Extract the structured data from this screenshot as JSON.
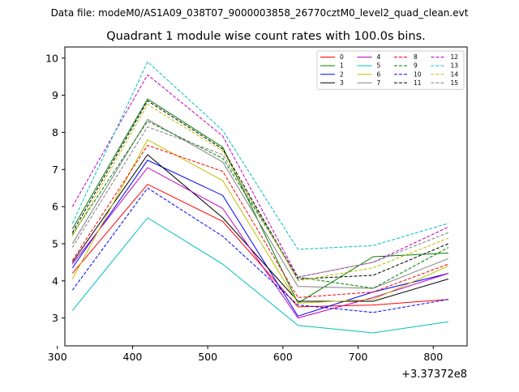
{
  "figure": {
    "suptitle": "Data file: modeM0/AS1A09_038T07_9000003858_26770cztM0_level2_quad_clean.evt",
    "title": "Quadrant 1 module wise count rates with 100.0s bins."
  },
  "chart_data": {
    "type": "line",
    "x_offset_label": "+3.37372e8",
    "xlim": [
      310,
      845
    ],
    "ylim": [
      2.25,
      10.3
    ],
    "x_ticks": [
      300,
      400,
      500,
      600,
      700,
      800
    ],
    "x_tick_labels": [
      "300",
      "400",
      "500",
      "600",
      "700",
      "800"
    ],
    "y_ticks": [
      3,
      4,
      5,
      6,
      7,
      8,
      9,
      10
    ],
    "y_tick_labels": [
      "3",
      "4",
      "5",
      "6",
      "7",
      "8",
      "9",
      "10"
    ],
    "x": [
      320,
      420,
      520,
      620,
      720,
      820
    ],
    "legend_position": "upper right",
    "legend_columns": 4,
    "grid": false,
    "series": [
      {
        "name": "0",
        "color": "#ff0000",
        "dash": "solid",
        "values": [
          4.2,
          6.6,
          5.6,
          3.3,
          3.35,
          3.5
        ]
      },
      {
        "name": "1",
        "color": "#008000",
        "dash": "solid",
        "values": [
          5.4,
          8.9,
          7.6,
          3.4,
          4.65,
          4.75
        ]
      },
      {
        "name": "2",
        "color": "#0000ff",
        "dash": "solid",
        "values": [
          4.35,
          7.25,
          6.3,
          3.05,
          3.7,
          4.2
        ]
      },
      {
        "name": "3",
        "color": "#000000",
        "dash": "solid",
        "values": [
          4.5,
          7.4,
          5.7,
          3.45,
          3.45,
          4.05
        ]
      },
      {
        "name": "4",
        "color": "#bf00bf",
        "dash": "solid",
        "values": [
          4.45,
          7.05,
          5.95,
          3.0,
          3.55,
          4.2
        ]
      },
      {
        "name": "5",
        "color": "#00bfbf",
        "dash": "solid",
        "values": [
          3.2,
          5.7,
          4.45,
          2.8,
          2.6,
          2.9
        ]
      },
      {
        "name": "6",
        "color": "#bfbf00",
        "dash": "solid",
        "values": [
          4.05,
          7.8,
          6.7,
          3.4,
          3.5,
          4.4
        ]
      },
      {
        "name": "7",
        "color": "#808080",
        "dash": "solid",
        "values": [
          5.0,
          8.35,
          7.2,
          3.85,
          3.8,
          4.6
        ]
      },
      {
        "name": "8",
        "color": "#ff0000",
        "dash": "dashed",
        "values": [
          4.55,
          7.65,
          6.95,
          3.55,
          3.7,
          4.45
        ]
      },
      {
        "name": "9",
        "color": "#008000",
        "dash": "dashed",
        "values": [
          5.25,
          8.3,
          7.3,
          4.1,
          3.8,
          4.9
        ]
      },
      {
        "name": "10",
        "color": "#0000ff",
        "dash": "dashed",
        "values": [
          3.75,
          6.5,
          5.2,
          3.35,
          3.15,
          3.5
        ]
      },
      {
        "name": "11",
        "color": "#000000",
        "dash": "dashed",
        "values": [
          5.3,
          8.85,
          7.55,
          4.05,
          4.15,
          5.0
        ]
      },
      {
        "name": "12",
        "color": "#bf00bf",
        "dash": "dashed",
        "values": [
          6.0,
          9.55,
          7.9,
          4.1,
          4.5,
          5.45
        ]
      },
      {
        "name": "13",
        "color": "#00bfbf",
        "dash": "dashed",
        "values": [
          5.55,
          9.9,
          8.05,
          4.85,
          4.95,
          5.55
        ]
      },
      {
        "name": "14",
        "color": "#bfbf00",
        "dash": "dashed",
        "values": [
          5.2,
          8.75,
          7.5,
          4.0,
          4.35,
          5.15
        ]
      },
      {
        "name": "15",
        "color": "#808080",
        "dash": "dashed",
        "values": [
          4.9,
          8.15,
          7.4,
          4.1,
          4.5,
          5.3
        ]
      }
    ]
  }
}
